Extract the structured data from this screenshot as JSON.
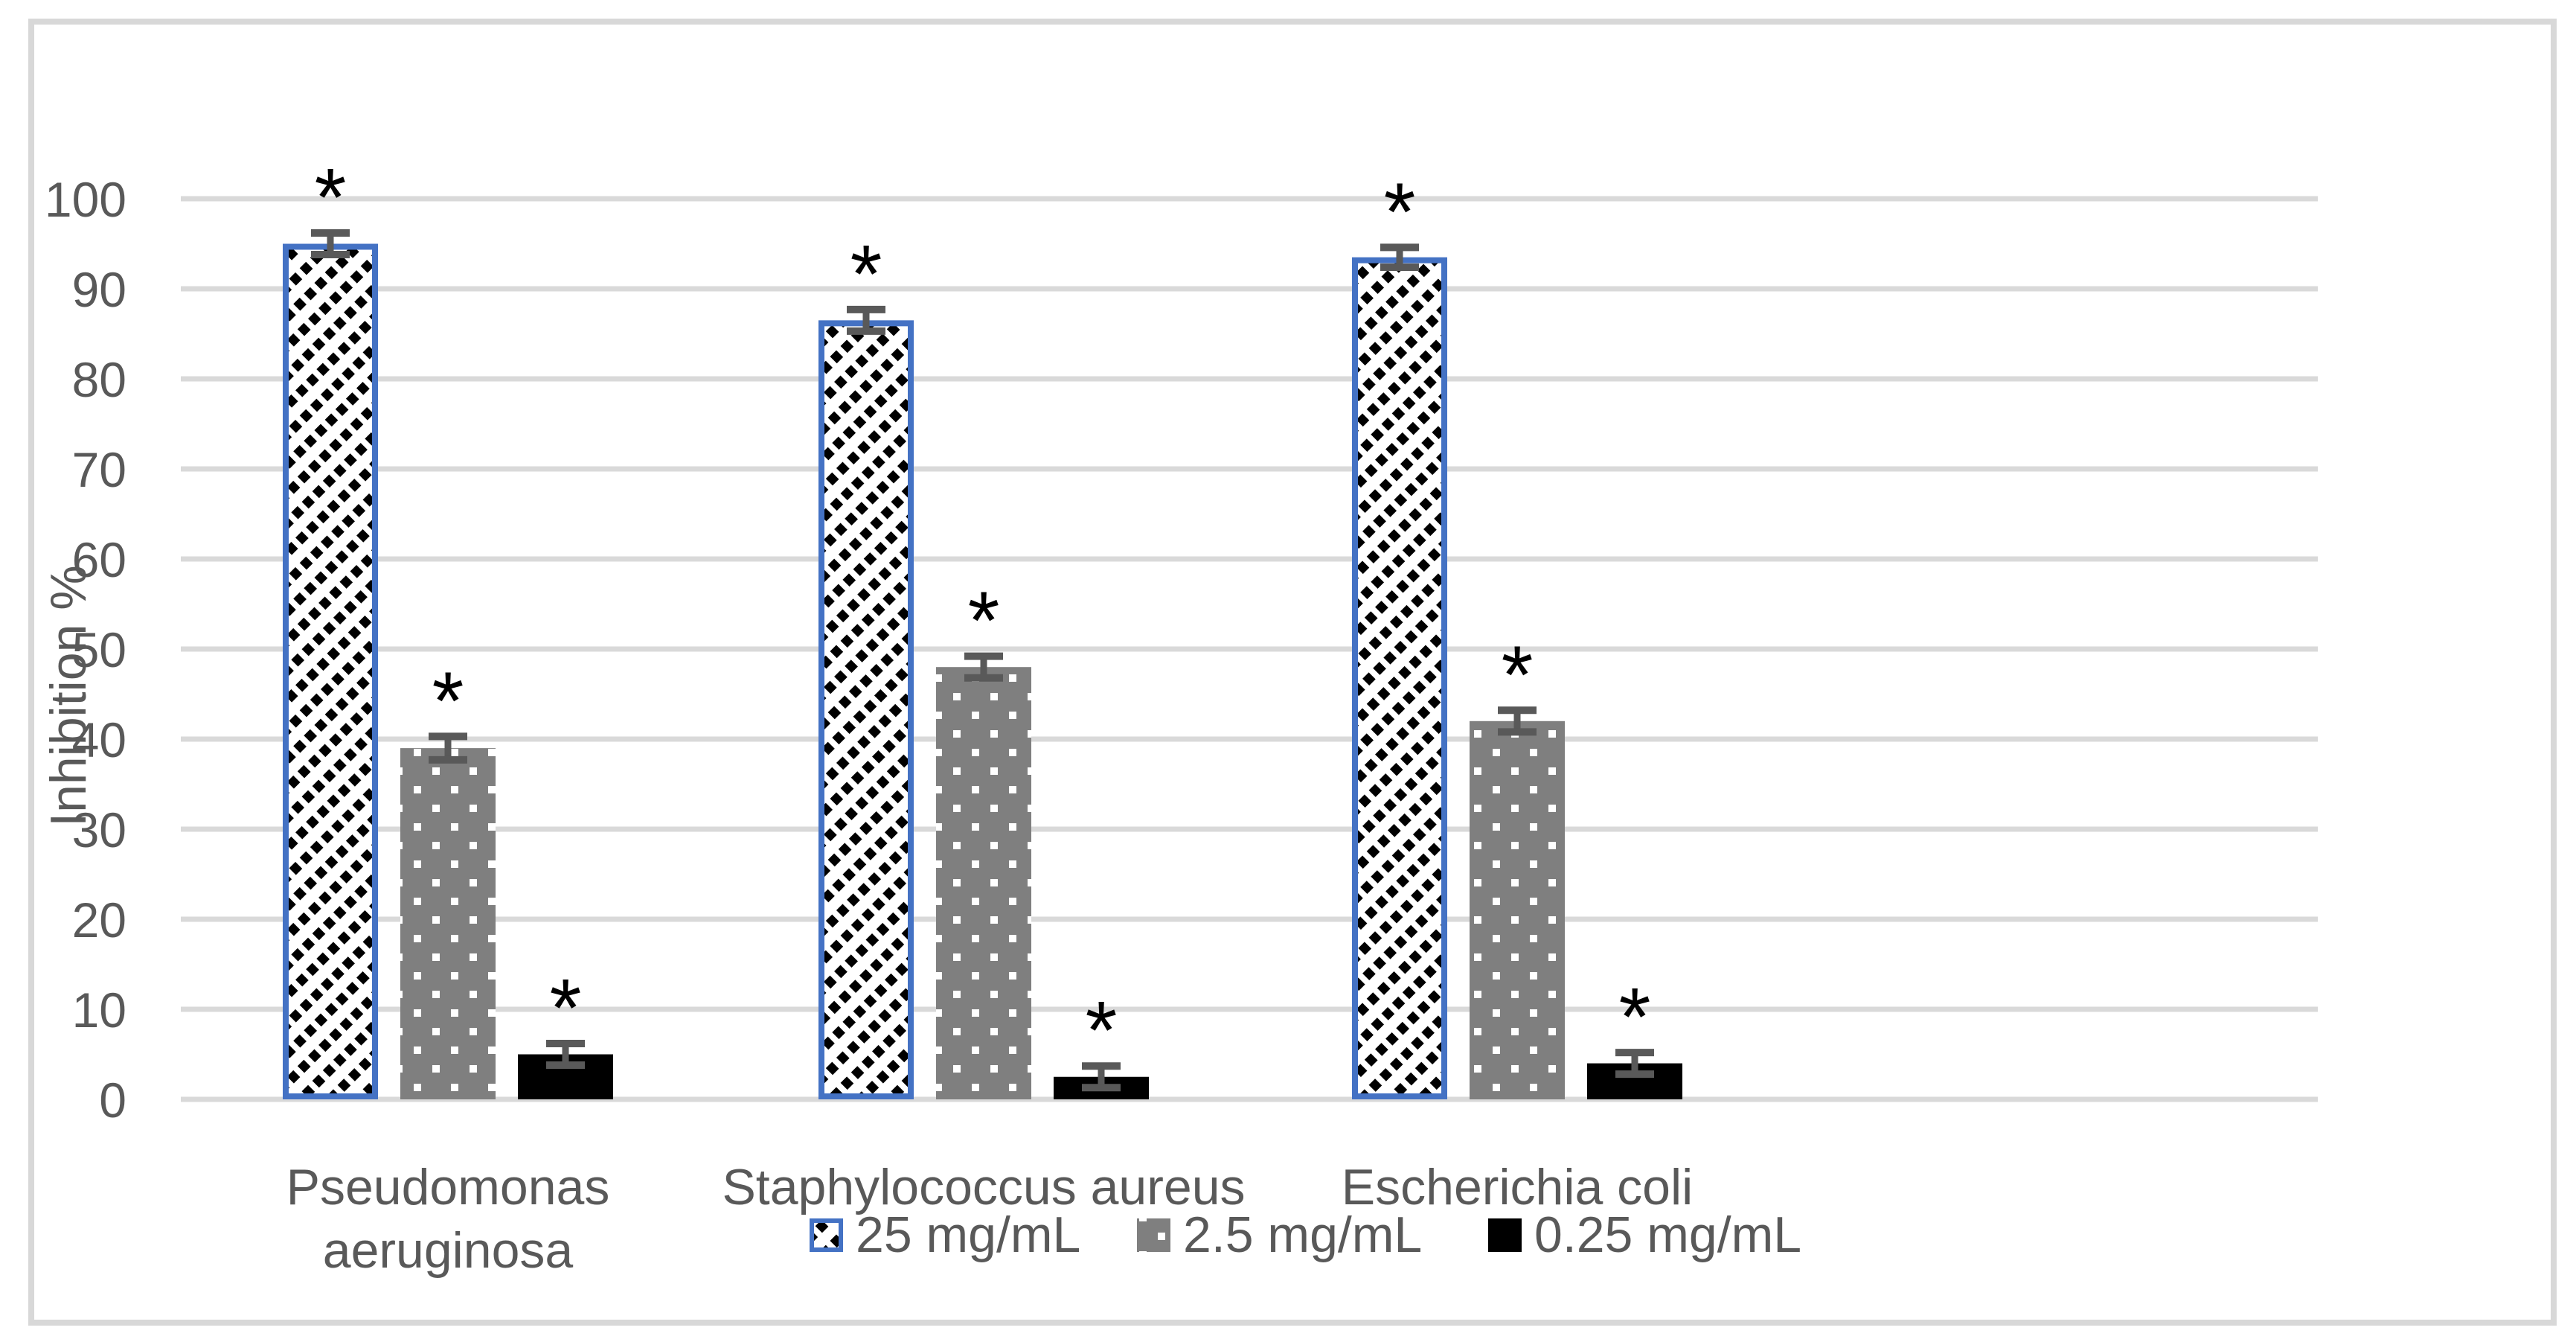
{
  "chart_data": {
    "type": "bar",
    "title": "",
    "ylabel": "Inhibition %",
    "xlabel": "",
    "ylim": [
      0,
      100
    ],
    "ytick_step": 10,
    "yticks": [
      0,
      10,
      20,
      30,
      40,
      50,
      60,
      70,
      80,
      90,
      100
    ],
    "grid": true,
    "legend_position": "bottom",
    "categories": [
      {
        "label": "Pseudomonas aeruginosa",
        "lines": [
          "Pseudomonas",
          "aeruginosa"
        ]
      },
      {
        "label": "Staphylococcus aureus",
        "lines": [
          "Staphylococcus aureus"
        ]
      },
      {
        "label": "Escherichia coli",
        "lines": [
          "Escherichia coli"
        ]
      }
    ],
    "series": [
      {
        "name": "25 mg/mL",
        "style": "hatched-diagonal",
        "values": [
          95,
          86.5,
          93.5
        ],
        "errors": [
          1.2,
          1.2,
          1.1
        ],
        "significance": [
          "*",
          "*",
          "*"
        ]
      },
      {
        "name": "2.5 mg/mL",
        "style": "gray-dotted",
        "values": [
          39,
          48,
          42
        ],
        "errors": [
          1.3,
          1.2,
          1.2
        ],
        "significance": [
          "*",
          "*",
          "*"
        ]
      },
      {
        "name": "0.25 mg/mL",
        "style": "solid-black",
        "values": [
          5,
          2.5,
          4
        ],
        "errors": [
          1.2,
          1.2,
          1.2
        ],
        "significance": [
          "*",
          "*",
          "*"
        ]
      }
    ],
    "colors": {
      "hatch_stroke": "#000000",
      "hatch_background": "#ffffff",
      "hatched_bar_border": "#4472C4",
      "gray_bar_fill": "#7F7F7F",
      "gray_bar_dot": "#ffffff",
      "black_bar_fill": "#000000",
      "gridline": "#D9D9D9",
      "frame_border": "#D8D8D8",
      "text": "#595959",
      "error_bar": "#595959",
      "asterisk": "#000000"
    }
  }
}
